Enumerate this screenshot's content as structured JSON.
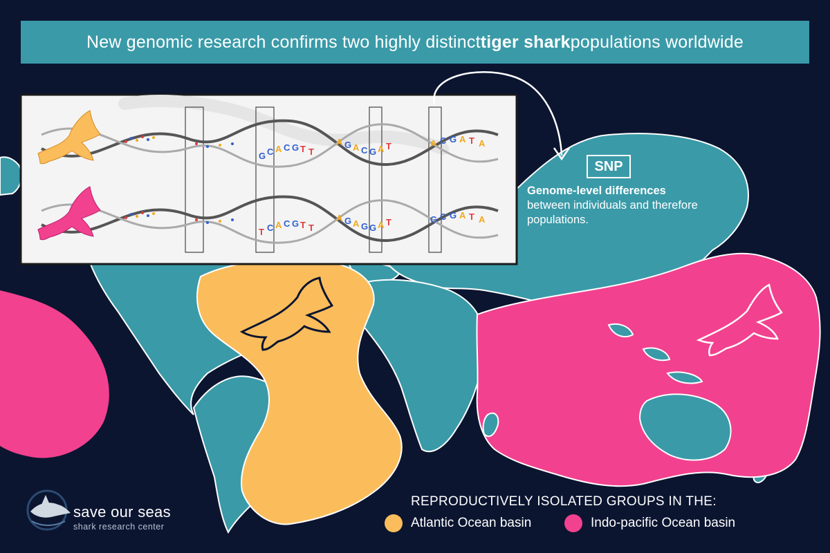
{
  "title": {
    "before": "New genomic research confirms two highly distinct ",
    "emphasis": "tiger shark",
    "after": " populations worldwide"
  },
  "snp": {
    "label": "SNP",
    "heading": "Genome-level differences",
    "description": "between individuals and therefore populations."
  },
  "dna": {
    "top_groups": [
      [
        "G",
        "C",
        "A",
        "C",
        "G",
        "T",
        "T"
      ],
      [
        "A",
        "G",
        "A",
        "C",
        "G",
        "A",
        "T"
      ],
      [
        "A",
        "C",
        "G",
        "A",
        "T",
        "A"
      ]
    ],
    "bottom_groups": [
      [
        "T",
        "C",
        "A",
        "C",
        "G",
        "T",
        "T"
      ],
      [
        "A",
        "G",
        "A",
        "G",
        "G",
        "A",
        "T"
      ],
      [
        "G",
        "C",
        "G",
        "A",
        "T",
        "A"
      ]
    ],
    "base_colors": {
      "A": "#f2a91f",
      "C": "#2f5fd0",
      "G": "#2f5fd0",
      "T": "#e23a3a"
    }
  },
  "legend": {
    "title": "REPRODUCTIVELY ISOLATED GROUPS IN THE:",
    "items": [
      {
        "label": "Atlantic Ocean basin",
        "color": "#fbbd5c"
      },
      {
        "label": "Indo-pacific Ocean basin",
        "color": "#f2418f"
      }
    ]
  },
  "logo": {
    "name": "save our seas",
    "subtitle": "shark research center"
  },
  "colors": {
    "background": "#0b1530",
    "land": "#3a9aa8",
    "atlantic": "#fbbd5c",
    "indopacific": "#f2418f",
    "banner": "#3a9aa8"
  }
}
